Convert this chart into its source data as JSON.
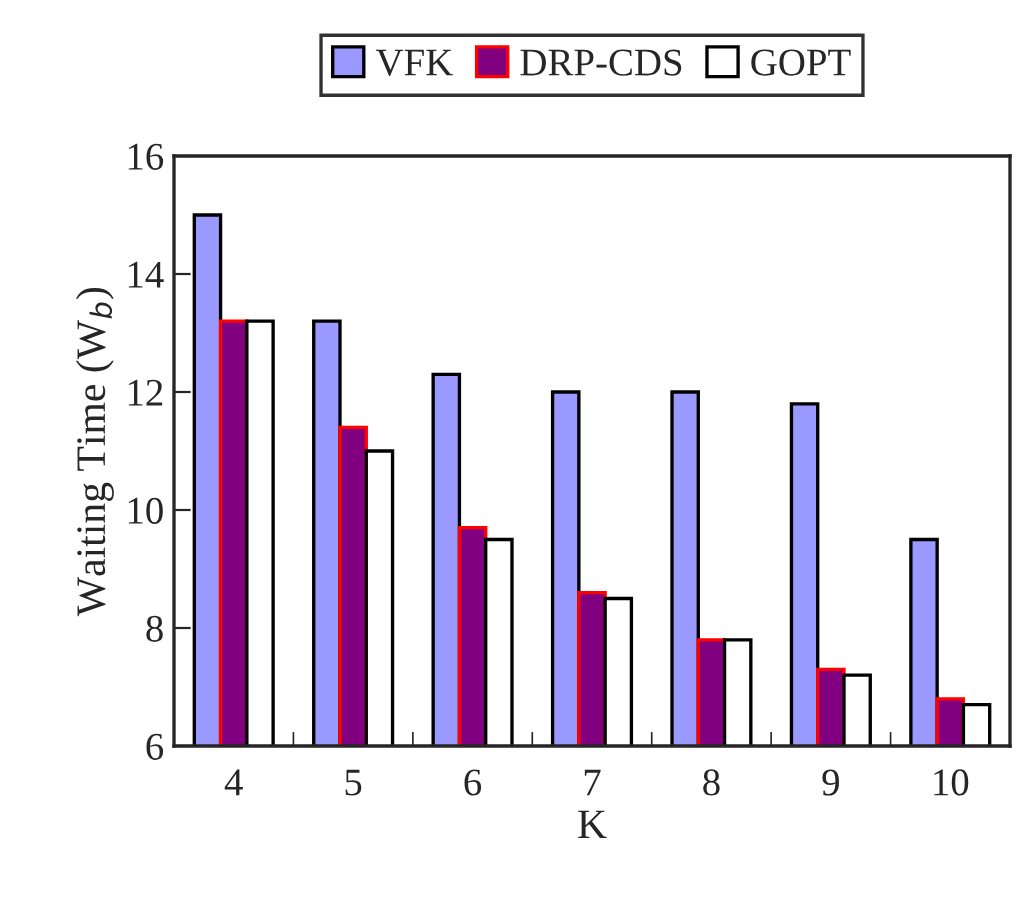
{
  "chart_data": {
    "type": "bar",
    "xlabel": "K",
    "ylabel": "Waiting Time (W$_{b}$)",
    "categories": [
      "4",
      "5",
      "6",
      "7",
      "8",
      "9",
      "10"
    ],
    "series": [
      {
        "name": "VFK",
        "color": "#9999ff",
        "values": [
          15.0,
          13.2,
          12.3,
          12.0,
          12.0,
          11.8,
          9.5
        ]
      },
      {
        "name": "DRP-CDS",
        "color": "#800080",
        "values": [
          13.2,
          11.4,
          9.7,
          8.6,
          7.8,
          7.3,
          6.8
        ]
      },
      {
        "name": "GOPT",
        "color": "#ffffff",
        "values": [
          13.2,
          11.0,
          9.5,
          8.5,
          7.8,
          7.2,
          6.7
        ]
      }
    ],
    "ylim": [
      6,
      16
    ],
    "yticks": [
      6,
      8,
      10,
      12,
      14,
      16
    ],
    "grid": false,
    "legend": "top"
  }
}
